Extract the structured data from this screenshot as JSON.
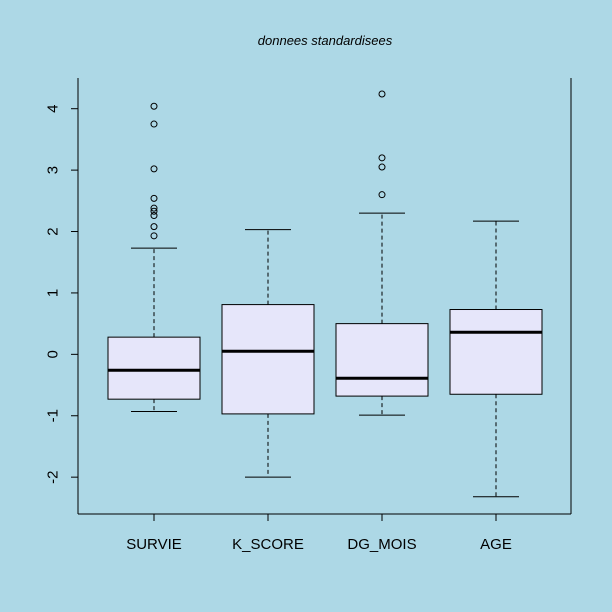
{
  "chart_data": {
    "type": "box",
    "title": "donnees standardisees",
    "xlabel": "",
    "ylabel": "",
    "ylim": [
      -2.6,
      4.5
    ],
    "yticks": [
      -2,
      -1,
      0,
      1,
      2,
      3,
      4
    ],
    "ytick_labels": [
      "-2",
      "-1",
      "0",
      "1",
      "2",
      "3",
      "4"
    ],
    "box_fill": "#e6e6fa",
    "background": "#add8e6",
    "categories": [
      "SURVIE",
      "K_SCORE",
      "DG_MOIS",
      "AGE"
    ],
    "boxes": [
      {
        "name": "SURVIE",
        "whisker_low": -0.93,
        "q1": -0.73,
        "median": -0.26,
        "q3": 0.28,
        "whisker_high": 1.73,
        "outliers": [
          1.93,
          2.08,
          2.26,
          2.33,
          2.38,
          2.54,
          3.02,
          3.75,
          4.04
        ]
      },
      {
        "name": "K_SCORE",
        "whisker_low": -2.0,
        "q1": -0.97,
        "median": 0.05,
        "q3": 0.81,
        "whisker_high": 2.03,
        "outliers": []
      },
      {
        "name": "DG_MOIS",
        "whisker_low": -0.99,
        "q1": -0.68,
        "median": -0.39,
        "q3": 0.5,
        "whisker_high": 2.3,
        "outliers": [
          2.6,
          3.05,
          3.2,
          4.24
        ]
      },
      {
        "name": "AGE",
        "whisker_low": -2.32,
        "q1": -0.65,
        "median": 0.36,
        "q3": 0.73,
        "whisker_high": 2.17,
        "outliers": []
      }
    ]
  }
}
